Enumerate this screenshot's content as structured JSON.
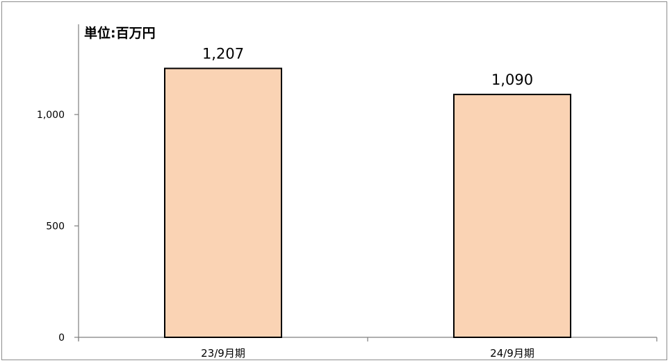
{
  "chart_data": {
    "type": "bar",
    "unit_label": "単位:百万円",
    "categories": [
      "23/9月期",
      "24/9月期"
    ],
    "values": [
      1207,
      1090
    ],
    "data_labels": [
      "1,207",
      "1,090"
    ],
    "yticks": [
      0,
      500,
      1000
    ],
    "ytick_labels": [
      "0",
      "500",
      "1,000"
    ],
    "ylim": [
      0,
      1250
    ],
    "grid": false,
    "legend": "none",
    "bar_color": "#FAD3B4",
    "bar_edge_color": "#000000"
  }
}
